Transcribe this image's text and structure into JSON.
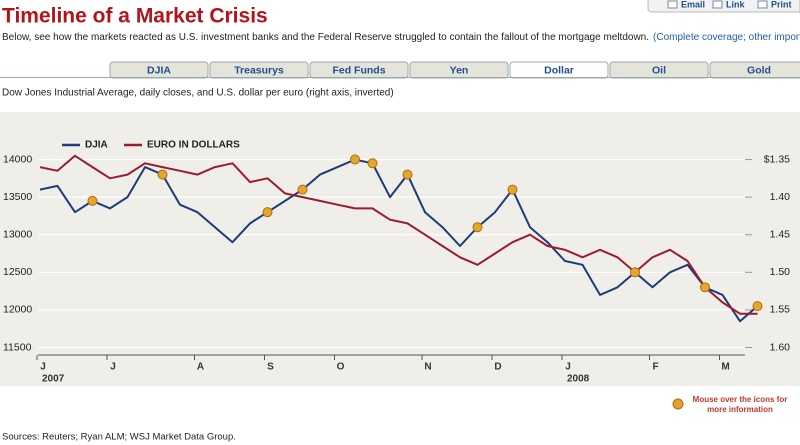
{
  "header": {
    "title": "Timeline of a Market Crisis",
    "actions": [
      "Email",
      "Link",
      "Print"
    ],
    "subtitle": "Below, see how the markets reacted as U.S. investment banks and the Federal Reserve struggled to contain the fallout of the mortgage meltdown.",
    "subtitle_links": "(Complete coverage; other important dates)"
  },
  "tabs": [
    "DJIA",
    "Treasurys",
    "Fed Funds",
    "Yen",
    "Dollar",
    "Oil",
    "Gold"
  ],
  "chart_data": {
    "type": "line",
    "title": "Dow Jones Industrial Average, daily closes, and U.S. dollar per euro (right axis, inverted)",
    "categories": [
      "J",
      null,
      null,
      null,
      "J",
      null,
      null,
      null,
      null,
      "A",
      null,
      null,
      null,
      "S",
      null,
      null,
      null,
      "O",
      null,
      null,
      null,
      null,
      "N",
      null,
      null,
      null,
      "D",
      null,
      null,
      null,
      "J",
      null,
      null,
      null,
      null,
      "F",
      null,
      null,
      null,
      "M",
      null,
      null
    ],
    "year_labels": [
      "2007",
      "2008"
    ],
    "series": [
      {
        "name": "DJIA",
        "color": "#1d3c78",
        "values": [
          13600,
          13650,
          13300,
          13450,
          13350,
          13500,
          13900,
          13800,
          13400,
          13300,
          13100,
          12900,
          13150,
          13300,
          13450,
          13600,
          13800,
          13900,
          14000,
          13950,
          13500,
          13800,
          13300,
          13100,
          12850,
          13100,
          13300,
          13600,
          13100,
          12900,
          12650,
          12600,
          12200,
          12300,
          12500,
          12300,
          12500,
          12600,
          12300,
          12200,
          11850,
          12050
        ]
      },
      {
        "name": "EURO IN DOLLARS",
        "color": "#9b1b30",
        "axis": "y2",
        "values": [
          1.36,
          1.365,
          1.345,
          1.36,
          1.375,
          1.37,
          1.355,
          1.36,
          1.365,
          1.37,
          1.36,
          1.355,
          1.38,
          1.375,
          1.395,
          1.4,
          1.405,
          1.41,
          1.415,
          1.415,
          1.43,
          1.435,
          1.45,
          1.465,
          1.48,
          1.49,
          1.475,
          1.46,
          1.45,
          1.465,
          1.47,
          1.48,
          1.47,
          1.48,
          1.5,
          1.48,
          1.47,
          1.485,
          1.52,
          1.54,
          1.555,
          1.555
        ]
      }
    ],
    "ylim": [
      11400,
      14300
    ],
    "yticks": [
      11500,
      12000,
      12500,
      13000,
      13500,
      14000
    ],
    "y2lim": [
      1.32,
      1.61
    ],
    "y2_inverted": true,
    "y2ticks": [
      {
        "value": 1.35,
        "label": "$1.35"
      },
      {
        "value": 1.4,
        "label": "1.40"
      },
      1.45,
      {
        "value": 1.5,
        "label": "1.50"
      },
      1.55,
      {
        "value": 1.6,
        "label": "1.60"
      }
    ],
    "grid": true
  },
  "note": "Mouse over the icons for more information",
  "sources": "Sources: Reuters; Ryan ALM; WSJ Market Data Group."
}
